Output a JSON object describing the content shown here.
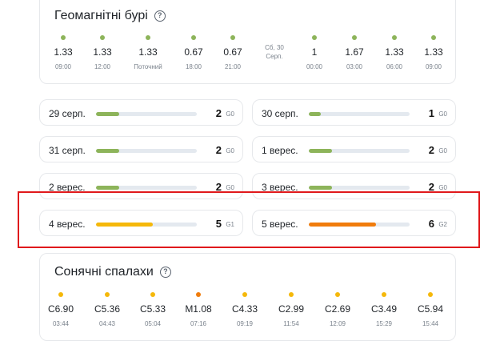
{
  "geomagnetic": {
    "title": "Геомагнітні бурі",
    "help": "?",
    "dot_color": "#8db45a",
    "items": [
      {
        "value": "1.33",
        "time": "09:00"
      },
      {
        "value": "1.33",
        "time": "12:00"
      },
      {
        "value": "1.33",
        "time": "Поточний"
      },
      {
        "value": "0.67",
        "time": "18:00"
      },
      {
        "value": "0.67",
        "time": "21:00"
      },
      {
        "value": "1",
        "time": "00:00"
      },
      {
        "value": "1.67",
        "time": "03:00"
      },
      {
        "value": "1.33",
        "time": "06:00"
      },
      {
        "value": "1.33",
        "time": "09:00"
      }
    ],
    "day_divider": {
      "line1": "Сб, 30",
      "line2": "Серп."
    }
  },
  "forecast": [
    {
      "date": "29 серп.",
      "value": "2",
      "scale": "G0",
      "level": 0.23,
      "color": "#8db45a"
    },
    {
      "date": "30 серп.",
      "value": "1",
      "scale": "G0",
      "level": 0.12,
      "color": "#8db45a"
    },
    {
      "date": "31 серп.",
      "value": "2",
      "scale": "G0",
      "level": 0.23,
      "color": "#8db45a"
    },
    {
      "date": "1 верес.",
      "value": "2",
      "scale": "G0",
      "level": 0.23,
      "color": "#8db45a"
    },
    {
      "date": "2 верес.",
      "value": "2",
      "scale": "G0",
      "level": 0.23,
      "color": "#8db45a"
    },
    {
      "date": "3 верес.",
      "value": "2",
      "scale": "G0",
      "level": 0.23,
      "color": "#8db45a"
    },
    {
      "date": "4 верес.",
      "value": "5",
      "scale": "G1",
      "level": 0.56,
      "color": "#f5b80a"
    },
    {
      "date": "5 верес.",
      "value": "6",
      "scale": "G2",
      "level": 0.67,
      "color": "#f07c0c"
    }
  ],
  "solar": {
    "title": "Сонячні спалахи",
    "help": "?",
    "items": [
      {
        "value": "C6.90",
        "time": "03:44",
        "color": "#f5b80a"
      },
      {
        "value": "C5.36",
        "time": "04:43",
        "color": "#f5b80a"
      },
      {
        "value": "C5.33",
        "time": "05:04",
        "color": "#f5b80a"
      },
      {
        "value": "M1.08",
        "time": "07:16",
        "color": "#f07c0c"
      },
      {
        "value": "C4.33",
        "time": "09:19",
        "color": "#f5b80a"
      },
      {
        "value": "C2.99",
        "time": "11:54",
        "color": "#f5b80a"
      },
      {
        "value": "C2.69",
        "time": "12:09",
        "color": "#f5b80a"
      },
      {
        "value": "C3.49",
        "time": "15:29",
        "color": "#f5b80a"
      },
      {
        "value": "C5.94",
        "time": "15:44",
        "color": "#f5b80a"
      }
    ]
  }
}
